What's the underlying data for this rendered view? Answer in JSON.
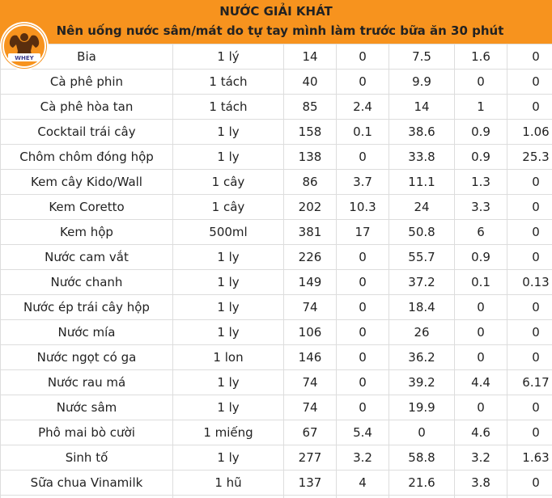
{
  "header": {
    "title": "NƯỚC GIẢI KHÁT",
    "subtitle": "Nên uống nước sâm/mát do tự tay mình làm trước bữa ăn 30 phút",
    "logo_icon": "bodybuilder-logo-icon",
    "background_color": "#f7931e"
  },
  "rows": [
    [
      "Bia",
      "1 lý",
      "14",
      "0",
      "7.5",
      "1.6",
      "0"
    ],
    [
      "Cà phê phin",
      "1 tách",
      "40",
      "0",
      "9.9",
      "0",
      "0"
    ],
    [
      "Cà phê hòa tan",
      "1 tách",
      "85",
      "2.4",
      "14",
      "1",
      "0"
    ],
    [
      "Cocktail trái cây",
      "1 ly",
      "158",
      "0.1",
      "38.6",
      "0.9",
      "1.06"
    ],
    [
      "Chôm chôm đóng hộp",
      "1 ly",
      "138",
      "0",
      "33.8",
      "0.9",
      "25.3"
    ],
    [
      "Kem cây Kido/Wall",
      "1 cây",
      "86",
      "3.7",
      "11.1",
      "1.3",
      "0"
    ],
    [
      "Kem Coretto",
      "1 cây",
      "202",
      "10.3",
      "24",
      "3.3",
      "0"
    ],
    [
      "Kem hộp",
      "500ml",
      "381",
      "17",
      "50.8",
      "6",
      "0"
    ],
    [
      "Nước cam vắt",
      "1 ly",
      "226",
      "0",
      "55.7",
      "0.9",
      "0"
    ],
    [
      "Nước chanh",
      "1 ly",
      "149",
      "0",
      "37.2",
      "0.1",
      "0.13"
    ],
    [
      "Nước ép trái cây hộp",
      "1 ly",
      "74",
      "0",
      "18.4",
      "0",
      "0"
    ],
    [
      "Nước mía",
      "1 ly",
      "106",
      "0",
      "26",
      "0",
      "0"
    ],
    [
      "Nước ngọt có ga",
      "1 lon",
      "146",
      "0",
      "36.2",
      "0",
      "0"
    ],
    [
      "Nước rau má",
      "1 ly",
      "74",
      "0",
      "39.2",
      "4.4",
      "6.17"
    ],
    [
      "Nước sâm",
      "1 ly",
      "74",
      "0",
      "19.9",
      "0",
      "0"
    ],
    [
      "Phô mai bò cười",
      "1 miếng",
      "67",
      "5.4",
      "0",
      "4.6",
      "0"
    ],
    [
      "Sinh tố",
      "1 ly",
      "277",
      "3.2",
      "58.8",
      "3.2",
      "1.63"
    ],
    [
      "Sữa chua Vinamilk",
      "1 hũ",
      "137",
      "4",
      "21.6",
      "3.8",
      "0"
    ],
    [
      "",
      "",
      "",
      "",
      "",
      "",
      ""
    ]
  ]
}
